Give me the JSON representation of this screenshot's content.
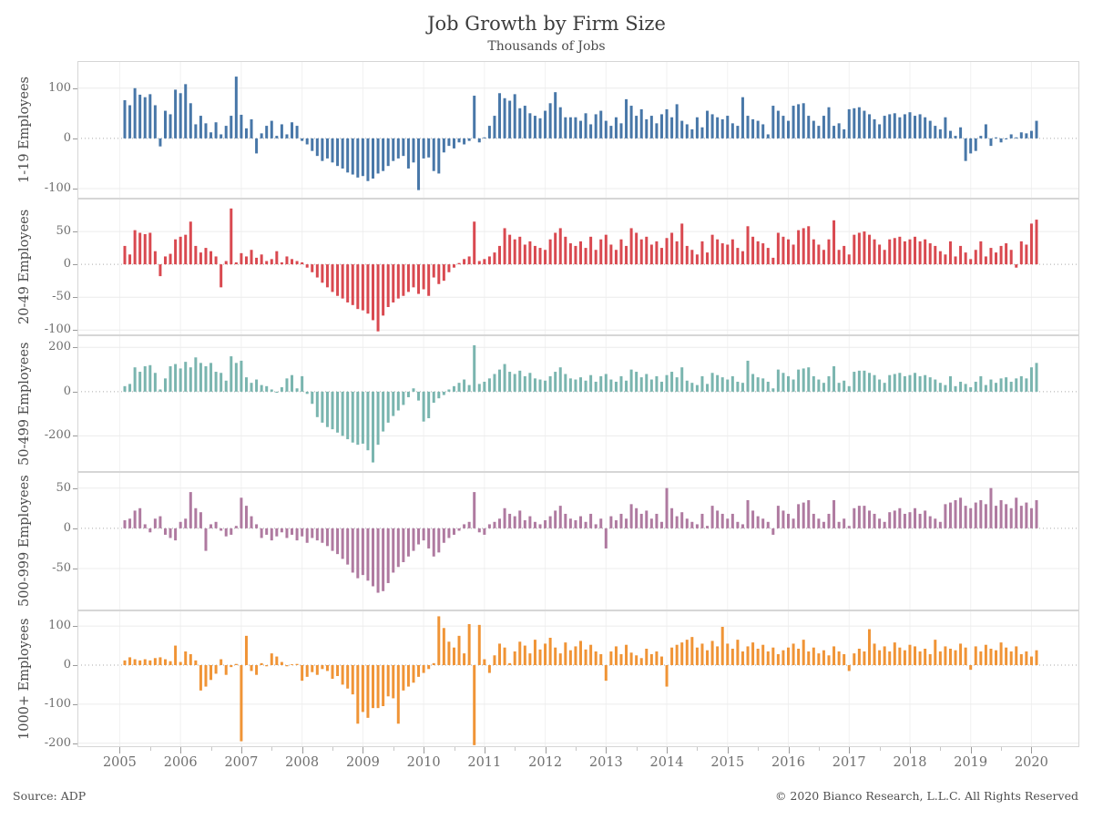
{
  "page": {
    "title": "Job Growth by Firm Size",
    "subtitle": "Thousands of Jobs"
  },
  "footer": {
    "source": "Source: ADP",
    "copyright": "© 2020 Bianco Research, L.L.C. All Rights Reserved"
  },
  "chart_data": {
    "type": "bar",
    "title": "Job Growth by Firm Size",
    "subtitle": "Thousands of Jobs",
    "ylabel_units": "Thousands of Jobs",
    "grid": "light horizontal gridlines, dotted zero line, faint vertical year lines",
    "legend_position": "none (rotated panel labels on left)",
    "x": {
      "frequency": "monthly",
      "start": "2005-02",
      "end": "2020-02",
      "year_ticks": [
        2005,
        2006,
        2007,
        2008,
        2009,
        2010,
        2011,
        2012,
        2013,
        2014,
        2015,
        2016,
        2017,
        2018,
        2019,
        2020
      ]
    },
    "panels": [
      {
        "label": "1-19 Employees",
        "color": "#4877a8",
        "yticks": [
          100,
          0,
          -100
        ],
        "ylim": [
          -120,
          154
        ],
        "values": [
          76,
          66,
          100,
          87,
          82,
          88,
          66,
          -16,
          55,
          48,
          97,
          90,
          108,
          70,
          28,
          45,
          30,
          12,
          32,
          8,
          25,
          45,
          123,
          47,
          20,
          38,
          -30,
          10,
          25,
          35,
          5,
          28,
          8,
          32,
          25,
          -5,
          -12,
          -25,
          -35,
          -45,
          -40,
          -48,
          -55,
          -60,
          -68,
          -72,
          -78,
          -75,
          -85,
          -80,
          -70,
          -65,
          -55,
          -45,
          -40,
          -35,
          -60,
          -48,
          -103,
          -40,
          -38,
          -65,
          -70,
          -28,
          -15,
          -20,
          -8,
          -12,
          -5,
          85,
          -8,
          2,
          25,
          45,
          90,
          80,
          75,
          88,
          60,
          65,
          50,
          45,
          40,
          55,
          70,
          92,
          62,
          42,
          42,
          42,
          35,
          50,
          28,
          48,
          55,
          35,
          25,
          42,
          30,
          78,
          65,
          45,
          58,
          38,
          45,
          30,
          48,
          58,
          42,
          68,
          35,
          28,
          18,
          42,
          22,
          55,
          48,
          42,
          38,
          45,
          30,
          25,
          82,
          45,
          38,
          35,
          28,
          8,
          65,
          55,
          45,
          35,
          65,
          68,
          70,
          45,
          35,
          25,
          45,
          62,
          25,
          30,
          18,
          58,
          60,
          62,
          55,
          48,
          38,
          28,
          45,
          48,
          50,
          42,
          48,
          52,
          45,
          48,
          42,
          35,
          25,
          18,
          42,
          15,
          5,
          22,
          -45,
          -30,
          -25,
          5,
          28,
          -15,
          2,
          -8,
          -2,
          8,
          2,
          12,
          10,
          15,
          35
        ]
      },
      {
        "label": "20-49 Employees",
        "color": "#d94950",
        "yticks": [
          50,
          0,
          -50,
          -100
        ],
        "ylim": [
          -108,
          100
        ],
        "values": [
          28,
          15,
          52,
          48,
          46,
          48,
          20,
          -18,
          12,
          16,
          38,
          42,
          45,
          65,
          28,
          18,
          25,
          20,
          12,
          -35,
          5,
          85,
          3,
          17,
          12,
          22,
          10,
          15,
          5,
          8,
          20,
          3,
          12,
          8,
          5,
          3,
          -5,
          -12,
          -20,
          -28,
          -35,
          -42,
          -48,
          -52,
          -58,
          -62,
          -68,
          -70,
          -75,
          -85,
          -102,
          -78,
          -65,
          -58,
          -52,
          -48,
          -42,
          -35,
          -45,
          -38,
          -48,
          -20,
          -30,
          -25,
          -12,
          -5,
          2,
          8,
          12,
          65,
          5,
          8,
          12,
          18,
          28,
          55,
          45,
          38,
          42,
          30,
          35,
          28,
          25,
          22,
          38,
          48,
          55,
          42,
          32,
          28,
          35,
          25,
          42,
          22,
          38,
          45,
          30,
          22,
          38,
          28,
          55,
          48,
          38,
          42,
          30,
          35,
          25,
          40,
          48,
          35,
          62,
          28,
          22,
          15,
          35,
          18,
          45,
          38,
          32,
          30,
          38,
          25,
          20,
          58,
          42,
          35,
          32,
          25,
          10,
          48,
          42,
          38,
          30,
          52,
          55,
          58,
          38,
          30,
          22,
          38,
          67,
          22,
          28,
          15,
          45,
          48,
          50,
          45,
          38,
          30,
          22,
          38,
          40,
          42,
          35,
          38,
          42,
          35,
          38,
          32,
          28,
          20,
          15,
          35,
          12,
          28,
          18,
          8,
          22,
          35,
          12,
          25,
          18,
          28,
          32,
          22,
          -5,
          35,
          30,
          62,
          68
        ]
      },
      {
        "label": "50-499 Employees",
        "color": "#7ab5af",
        "yticks": [
          200,
          0,
          -200
        ],
        "ylim": [
          -363,
          255
        ],
        "values": [
          25,
          35,
          110,
          90,
          115,
          120,
          85,
          10,
          60,
          115,
          125,
          105,
          135,
          110,
          155,
          130,
          115,
          130,
          90,
          85,
          50,
          160,
          130,
          140,
          65,
          40,
          55,
          30,
          25,
          10,
          -5,
          20,
          60,
          75,
          15,
          70,
          -10,
          -55,
          -115,
          -140,
          -160,
          -170,
          -185,
          -200,
          -215,
          -230,
          -240,
          -235,
          -265,
          -320,
          -240,
          -180,
          -140,
          -110,
          -85,
          -60,
          -25,
          15,
          -40,
          -135,
          -120,
          -50,
          -30,
          -15,
          10,
          25,
          40,
          55,
          30,
          210,
          35,
          45,
          60,
          80,
          100,
          125,
          90,
          80,
          95,
          70,
          85,
          60,
          55,
          50,
          70,
          90,
          110,
          80,
          60,
          55,
          65,
          50,
          75,
          45,
          70,
          80,
          55,
          45,
          70,
          50,
          100,
          90,
          65,
          80,
          55,
          70,
          45,
          75,
          90,
          65,
          110,
          50,
          40,
          30,
          70,
          35,
          85,
          75,
          65,
          55,
          70,
          45,
          40,
          140,
          80,
          65,
          60,
          45,
          15,
          100,
          85,
          70,
          55,
          100,
          105,
          110,
          70,
          55,
          40,
          70,
          115,
          40,
          50,
          25,
          90,
          95,
          95,
          85,
          75,
          55,
          40,
          75,
          80,
          85,
          70,
          75,
          85,
          70,
          75,
          65,
          55,
          40,
          30,
          70,
          25,
          45,
          35,
          20,
          45,
          70,
          30,
          55,
          40,
          60,
          65,
          45,
          60,
          70,
          60,
          110,
          130
        ]
      },
      {
        "label": "500-999 Employees",
        "color": "#af7aa0",
        "yticks": [
          50,
          0,
          -50
        ],
        "ylim": [
          -102,
          70
        ],
        "values": [
          10,
          12,
          22,
          25,
          5,
          -5,
          12,
          15,
          -8,
          -12,
          -15,
          8,
          12,
          45,
          25,
          20,
          -28,
          5,
          8,
          -3,
          -10,
          -8,
          3,
          38,
          28,
          15,
          5,
          -12,
          -8,
          -15,
          -10,
          -5,
          -12,
          -8,
          -15,
          -10,
          -18,
          -12,
          -15,
          -18,
          -22,
          -28,
          -32,
          -38,
          -45,
          -55,
          -62,
          -58,
          -65,
          -72,
          -80,
          -78,
          -68,
          -55,
          -48,
          -42,
          -35,
          -28,
          -20,
          -15,
          -25,
          -35,
          -30,
          -18,
          -12,
          -8,
          -3,
          5,
          8,
          45,
          -5,
          -8,
          5,
          8,
          12,
          25,
          18,
          15,
          22,
          10,
          15,
          8,
          5,
          10,
          15,
          22,
          28,
          18,
          12,
          10,
          15,
          8,
          18,
          5,
          12,
          -25,
          15,
          10,
          18,
          12,
          30,
          25,
          18,
          22,
          12,
          18,
          8,
          50,
          25,
          15,
          20,
          12,
          8,
          5,
          18,
          3,
          28,
          22,
          18,
          12,
          18,
          8,
          5,
          35,
          22,
          15,
          12,
          8,
          -8,
          28,
          22,
          18,
          12,
          30,
          32,
          35,
          18,
          12,
          8,
          18,
          35,
          8,
          12,
          3,
          25,
          28,
          28,
          22,
          18,
          12,
          8,
          20,
          22,
          25,
          18,
          20,
          25,
          18,
          22,
          15,
          12,
          8,
          30,
          32,
          35,
          38,
          28,
          25,
          32,
          35,
          30,
          50,
          28,
          35,
          30,
          25,
          38,
          28,
          32,
          25,
          35
        ]
      },
      {
        "label": "1000+ Employees",
        "color": "#f09436",
        "yticks": [
          100,
          0,
          -100,
          -200
        ],
        "ylim": [
          -210,
          140
        ],
        "values": [
          12,
          20,
          15,
          12,
          15,
          12,
          18,
          20,
          15,
          10,
          50,
          8,
          35,
          28,
          12,
          -65,
          -55,
          -38,
          -22,
          15,
          -25,
          -5,
          3,
          -195,
          75,
          -15,
          -25,
          5,
          -3,
          30,
          22,
          8,
          -3,
          2,
          3,
          -40,
          -30,
          -18,
          -25,
          -10,
          -15,
          -35,
          -28,
          -50,
          -60,
          -75,
          -150,
          -120,
          -135,
          -110,
          -110,
          -105,
          -80,
          -85,
          -150,
          -65,
          -55,
          -45,
          -30,
          -20,
          -10,
          5,
          125,
          95,
          60,
          45,
          75,
          30,
          105,
          -205,
          103,
          15,
          -20,
          25,
          55,
          45,
          5,
          35,
          60,
          50,
          30,
          65,
          40,
          55,
          70,
          45,
          30,
          58,
          38,
          48,
          62,
          40,
          52,
          35,
          28,
          -40,
          35,
          48,
          28,
          52,
          32,
          25,
          18,
          42,
          28,
          35,
          22,
          -55,
          45,
          52,
          58,
          65,
          72,
          45,
          55,
          38,
          62,
          48,
          98,
          55,
          42,
          65,
          35,
          48,
          58,
          42,
          52,
          35,
          45,
          28,
          38,
          45,
          55,
          42,
          65,
          35,
          45,
          30,
          38,
          25,
          48,
          35,
          28,
          -15,
          30,
          42,
          35,
          92,
          55,
          38,
          48,
          35,
          58,
          45,
          38,
          52,
          48,
          35,
          42,
          28,
          65,
          35,
          48,
          42,
          38,
          55,
          45,
          -12,
          48,
          35,
          52,
          42,
          38,
          58,
          45,
          35,
          48,
          28,
          35,
          22,
          38
        ]
      }
    ]
  }
}
